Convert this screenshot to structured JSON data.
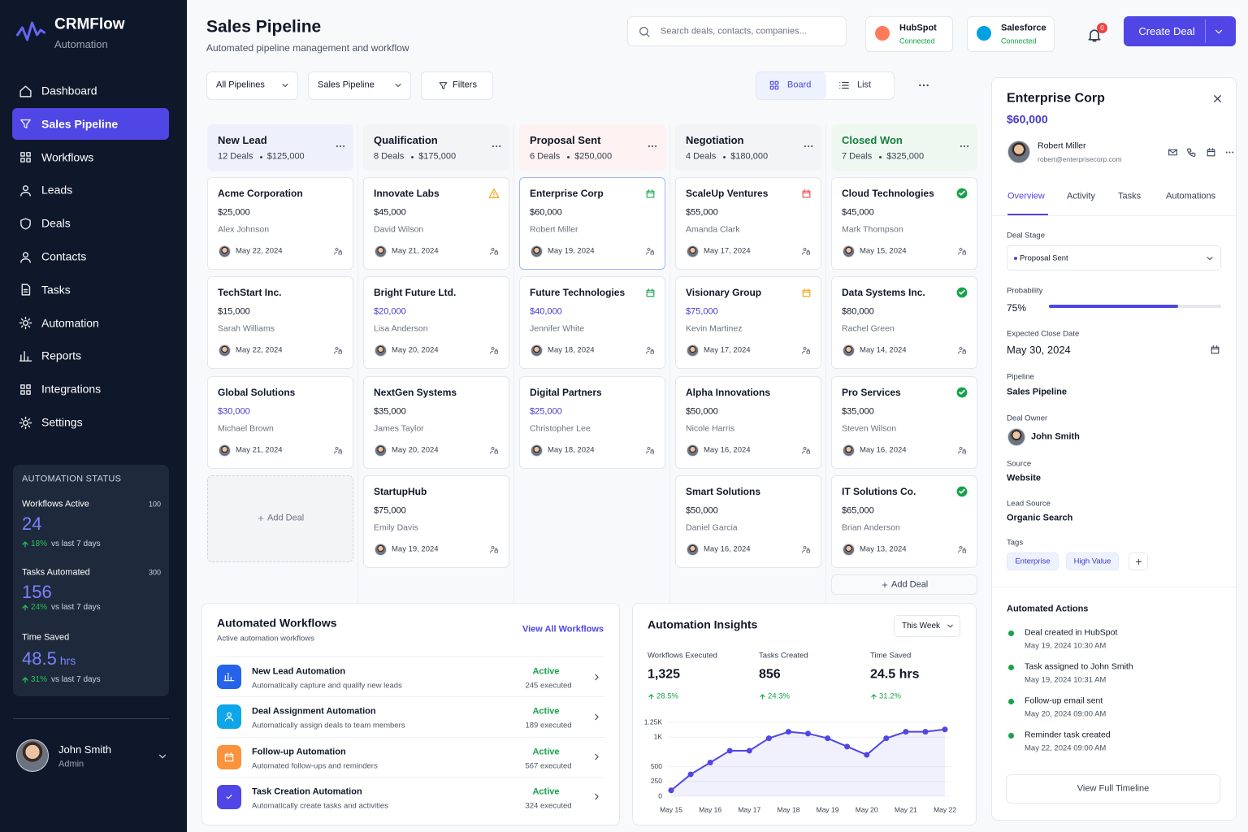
{
  "sidebar": {
    "brand": "CRMFlow",
    "tagline": "Automation",
    "nav": [
      "Dashboard",
      "Sales Pipeline",
      "Workflows",
      "Leads",
      "Deals",
      "Contacts",
      "Tasks",
      "Automation",
      "Reports",
      "Integrations",
      "Settings"
    ],
    "active_nav": 1,
    "status": {
      "title": "AUTOMATION STATUS",
      "items": [
        {
          "label": "Workflows Active",
          "badge": "100",
          "value": 24,
          "change": "18%",
          "period": "vs last 7 days"
        },
        {
          "label": "Tasks Automated",
          "badge": "300",
          "value": 156,
          "change": "24%",
          "period": "vs last 7 days"
        },
        {
          "label": "Time Saved",
          "value": 48.5,
          "unit": "hrs",
          "change": "31%",
          "period": "vs last 7 days"
        }
      ]
    },
    "user": {
      "name": "John Smith",
      "role": "Admin"
    }
  },
  "header": {
    "title": "Sales Pipeline",
    "subtitle": "Automated pipeline management and workflow",
    "search_placeholder": "Search deals, contacts, companies...",
    "integrations": [
      {
        "name": "HubSpot",
        "status": "Connected",
        "color": "#ff7a59"
      },
      {
        "name": "Salesforce",
        "status": "Connected",
        "color": "#00a1e0"
      }
    ],
    "notifications": 0,
    "create_button": "Create Deal"
  },
  "toolbar": {
    "selects": [
      "All Pipelines",
      "Sales Pipeline"
    ],
    "filters": "Filters",
    "views": [
      "Board",
      "List"
    ],
    "active_view": 0
  },
  "pipeline": {
    "add_deal": "Add Deal",
    "columns": [
      {
        "name": "New Lead",
        "count": "12 Deals",
        "total": "$125,000",
        "accent": "#eef1fb",
        "title_color": "#111827",
        "add_slot": "card",
        "deals": [
          {
            "company": "Acme Corporation",
            "amount": "$25,000",
            "contact": "Alex Johnson",
            "date": "May 22, 2024"
          },
          {
            "company": "TechStart Inc.",
            "amount": "$15,000",
            "contact": "Sarah Williams",
            "date": "May 22, 2024"
          },
          {
            "company": "Global Solutions",
            "amount": "$30,000",
            "contact": "Michael Brown",
            "date": "May 21, 2024",
            "highlight": true
          }
        ]
      },
      {
        "name": "Qualification",
        "count": "8 Deals",
        "total": "$175,000",
        "accent": "#f3f4f6",
        "title_color": "#111827",
        "deals": [
          {
            "company": "Innovate Labs",
            "amount": "$45,000",
            "contact": "David Wilson",
            "date": "May 21, 2024",
            "flag": "warning",
            "flag_color": "#f59e0b"
          },
          {
            "company": "Bright Future Ltd.",
            "amount": "$20,000",
            "contact": "Lisa Anderson",
            "date": "May 20, 2024",
            "highlight": true
          },
          {
            "company": "NextGen Systems",
            "amount": "$35,000",
            "contact": "James Taylor",
            "date": "May 20, 2024"
          },
          {
            "company": "StartupHub",
            "amount": "$75,000",
            "contact": "Emily Davis",
            "date": "May 19, 2024"
          }
        ]
      },
      {
        "name": "Proposal Sent",
        "count": "6 Deals",
        "total": "$250,000",
        "accent": "#fdf1f1",
        "title_color": "#111827",
        "deals": [
          {
            "company": "Enterprise Corp",
            "amount": "$60,000",
            "contact": "Robert Miller",
            "date": "May 19, 2024",
            "flag": "calendar",
            "flag_color": "#16a34a",
            "selected": true
          },
          {
            "company": "Future Technologies",
            "amount": "$40,000",
            "contact": "Jennifer White",
            "date": "May 18, 2024",
            "flag": "calendar",
            "flag_color": "#16a34a",
            "highlight": true
          },
          {
            "company": "Digital Partners",
            "amount": "$25,000",
            "contact": "Christopher Lee",
            "date": "May 18, 2024",
            "highlight": true
          }
        ]
      },
      {
        "name": "Negotiation",
        "count": "4 Deals",
        "total": "$180,000",
        "accent": "#f3f4f6",
        "title_color": "#111827",
        "deals": [
          {
            "company": "ScaleUp Ventures",
            "amount": "$55,000",
            "contact": "Amanda Clark",
            "date": "May 17, 2024",
            "flag": "calendar",
            "flag_color": "#ef4444"
          },
          {
            "company": "Visionary Group",
            "amount": "$75,000",
            "contact": "Kevin Martinez",
            "date": "May 17, 2024",
            "flag": "calendar",
            "flag_color": "#f59e0b",
            "highlight": true
          },
          {
            "company": "Alpha Innovations",
            "amount": "$50,000",
            "contact": "Nicole Harris",
            "date": "May 16, 2024"
          },
          {
            "company": "Smart Solutions",
            "amount": "$50,000",
            "contact": "Daniel Garcia",
            "date": "May 16, 2024"
          }
        ]
      },
      {
        "name": "Closed Won",
        "count": "7 Deals",
        "total": "$325,000",
        "accent": "#eef8f1",
        "title_color": "#15803d",
        "add_slot": "bar",
        "deals": [
          {
            "company": "Cloud Technologies",
            "amount": "$45,000",
            "contact": "Mark Thompson",
            "date": "May 15, 2024",
            "flag": "check",
            "flag_color": "#16a34a"
          },
          {
            "company": "Data Systems Inc.",
            "amount": "$80,000",
            "contact": "Rachel Green",
            "date": "May 14, 2024",
            "flag": "check",
            "flag_color": "#16a34a"
          },
          {
            "company": "Pro Services",
            "amount": "$35,000",
            "contact": "Steven Wilson",
            "date": "May 16, 2024",
            "flag": "check",
            "flag_color": "#16a34a"
          },
          {
            "company": "IT Solutions Co.",
            "amount": "$65,000",
            "contact": "Brian Anderson",
            "date": "May 13, 2024",
            "flag": "check",
            "flag_color": "#16a34a"
          }
        ]
      }
    ]
  },
  "workflows": {
    "title": "Automated Workflows",
    "subtitle": "Active automation workflows",
    "link": "View All Workflows",
    "items": [
      {
        "name": "New Lead Automation",
        "description": "Automatically capture and qualify new leads",
        "status": "Active",
        "executed": "245 executed",
        "color": "#2563eb"
      },
      {
        "name": "Deal Assignment Automation",
        "description": "Automatically assign deals to team members",
        "status": "Active",
        "executed": "189 executed",
        "color": "#0ea5e9"
      },
      {
        "name": "Follow-up Automation",
        "description": "Automated follow-ups and reminders",
        "status": "Active",
        "executed": "567 executed",
        "color": "#fb923c"
      },
      {
        "name": "Task Creation Automation",
        "description": "Automatically create tasks and activities",
        "status": "Active",
        "executed": "324 executed",
        "color": "#4f46e5"
      }
    ]
  },
  "insights": {
    "period": "This Week",
    "stats": [
      {
        "label": "Workflows Executed",
        "value": "1,325",
        "change": "28.5%"
      },
      {
        "label": "Tasks Created",
        "value": "856",
        "change": "24.3%"
      },
      {
        "label": "Time Saved",
        "value": "24.5 hrs",
        "change": "31.2%"
      }
    ]
  },
  "chart_data": {
    "type": "line",
    "title": "Automation Insights",
    "categories": [
      "May 15",
      null,
      "May 16",
      null,
      "May 17",
      null,
      "May 18",
      null,
      "May 19",
      null,
      "May 20",
      null,
      "May 21",
      null,
      "May 22"
    ],
    "values": [
      100,
      370,
      570,
      770,
      770,
      980,
      1090,
      1060,
      980,
      840,
      700,
      980,
      1090,
      1090,
      1130
    ],
    "color": "#4f46e5",
    "ylim": [
      0,
      1250
    ],
    "yticks": [
      0,
      250,
      500,
      {
        "value": 1000,
        "label": "1K"
      },
      {
        "value": 1250,
        "label": "1.25K"
      }
    ],
    "grid": true
  },
  "detail": {
    "title": "Enterprise Corp",
    "amount": "$60,000",
    "contact": {
      "name": "Robert Miller",
      "email": "robert@enterprisecorp.com"
    },
    "tabs": [
      "Overview",
      "Activity",
      "Tasks",
      "Automations"
    ],
    "active_tab": 0,
    "stage": {
      "label": "Deal Stage",
      "value": "Proposal Sent"
    },
    "probability": {
      "label": "Probability",
      "value": 75,
      "value_label": "75%"
    },
    "close_date": {
      "label": "Expected Close Date",
      "value": "May 30, 2024"
    },
    "pipeline": {
      "label": "Pipeline",
      "value": "Sales Pipeline"
    },
    "owner": {
      "label": "Deal Owner",
      "value": "John Smith"
    },
    "source": {
      "label": "Source",
      "value": "Website"
    },
    "lead_source": {
      "label": "Lead Source",
      "value": "Organic Search"
    },
    "tags": {
      "label": "Tags",
      "items": [
        "Enterprise",
        "High Value"
      ]
    },
    "actions": {
      "title": "Automated Actions",
      "items": [
        {
          "text": "Deal created in HubSpot",
          "time": "May 19, 2024 10:30 AM"
        },
        {
          "text": "Task assigned to John Smith",
          "time": "May 19, 2024 10:31 AM"
        },
        {
          "text": "Follow-up email sent",
          "time": "May 20, 2024 09:00 AM"
        },
        {
          "text": "Reminder task created",
          "time": "May 22, 2024 09:00 AM"
        }
      ],
      "button": "View Full Timeline"
    }
  }
}
